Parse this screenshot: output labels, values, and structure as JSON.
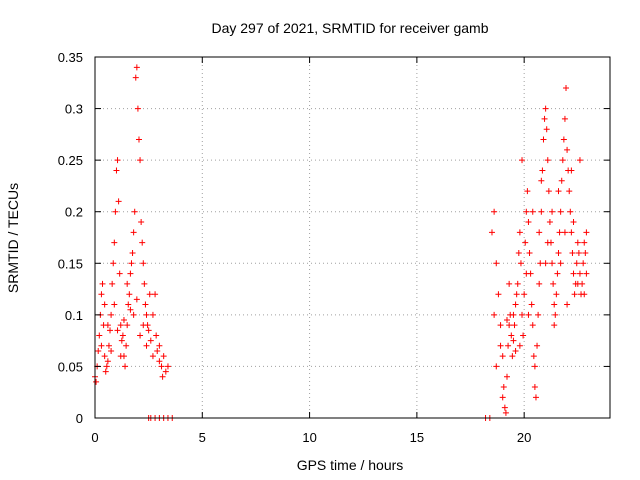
{
  "chart_data": {
    "type": "scatter",
    "title": "Day 297 of 2021, SRMTID for receiver gamb",
    "xlabel": "GPS time / hours",
    "ylabel": "SRMTID / TECUs",
    "xlim": [
      0,
      24
    ],
    "ylim": [
      0,
      0.35
    ],
    "xticks": [
      0,
      5,
      10,
      15,
      20
    ],
    "xtick_labels": [
      "0",
      "5",
      "10",
      "15",
      "20"
    ],
    "yticks": [
      0,
      0.05,
      0.1,
      0.15,
      0.2,
      0.25,
      0.3,
      0.35
    ],
    "ytick_labels": [
      "0",
      "0.05",
      "0.1",
      "0.15",
      "0.2",
      "0.25",
      "0.3",
      "0.35"
    ],
    "grid": true,
    "marker": "plus",
    "series": [
      {
        "name": "SRMTID",
        "color": "#ff0000",
        "points": [
          [
            0.0,
            0.04
          ],
          [
            0.05,
            0.035
          ],
          [
            0.1,
            0.05
          ],
          [
            0.15,
            0.065
          ],
          [
            0.2,
            0.08
          ],
          [
            0.25,
            0.1
          ],
          [
            0.3,
            0.12
          ],
          [
            0.35,
            0.13
          ],
          [
            0.4,
            0.09
          ],
          [
            0.45,
            0.06
          ],
          [
            0.5,
            0.045
          ],
          [
            0.55,
            0.05
          ],
          [
            0.6,
            0.055
          ],
          [
            0.65,
            0.07
          ],
          [
            0.7,
            0.085
          ],
          [
            0.75,
            0.1
          ],
          [
            0.8,
            0.13
          ],
          [
            0.85,
            0.15
          ],
          [
            0.9,
            0.17
          ],
          [
            0.95,
            0.2
          ],
          [
            1.0,
            0.24
          ],
          [
            1.05,
            0.25
          ],
          [
            1.1,
            0.21
          ],
          [
            1.15,
            0.14
          ],
          [
            1.2,
            0.09
          ],
          [
            1.25,
            0.075
          ],
          [
            1.3,
            0.08
          ],
          [
            1.35,
            0.06
          ],
          [
            1.4,
            0.05
          ],
          [
            1.45,
            0.07
          ],
          [
            1.5,
            0.09
          ],
          [
            1.55,
            0.11
          ],
          [
            1.6,
            0.12
          ],
          [
            1.65,
            0.14
          ],
          [
            1.7,
            0.15
          ],
          [
            1.75,
            0.16
          ],
          [
            1.8,
            0.18
          ],
          [
            1.85,
            0.2
          ],
          [
            1.9,
            0.33
          ],
          [
            1.95,
            0.34
          ],
          [
            2.0,
            0.3
          ],
          [
            2.05,
            0.27
          ],
          [
            2.1,
            0.25
          ],
          [
            2.15,
            0.19
          ],
          [
            2.2,
            0.17
          ],
          [
            2.25,
            0.15
          ],
          [
            2.3,
            0.13
          ],
          [
            2.35,
            0.11
          ],
          [
            2.4,
            0.1
          ],
          [
            2.45,
            0.09
          ],
          [
            2.5,
            0.085
          ],
          [
            2.6,
            0.075
          ],
          [
            2.7,
            0.1
          ],
          [
            2.8,
            0.12
          ],
          [
            2.9,
            0.065
          ],
          [
            3.0,
            0.055
          ],
          [
            3.1,
            0.05
          ],
          [
            3.2,
            0.06
          ],
          [
            3.3,
            0.045
          ],
          [
            3.4,
            0.05
          ],
          [
            0.3,
            0.07
          ],
          [
            0.6,
            0.09
          ],
          [
            0.9,
            0.11
          ],
          [
            1.2,
            0.06
          ],
          [
            1.5,
            0.13
          ],
          [
            1.8,
            0.1
          ],
          [
            2.1,
            0.08
          ],
          [
            2.4,
            0.07
          ],
          [
            2.7,
            0.06
          ],
          [
            3.0,
            0.07
          ],
          [
            0.45,
            0.11
          ],
          [
            0.75,
            0.065
          ],
          [
            1.05,
            0.085
          ],
          [
            1.35,
            0.095
          ],
          [
            1.65,
            0.105
          ],
          [
            1.95,
            0.115
          ],
          [
            2.25,
            0.09
          ],
          [
            2.55,
            0.12
          ],
          [
            2.85,
            0.08
          ],
          [
            3.15,
            0.04
          ],
          [
            2.5,
            0.0
          ],
          [
            2.6,
            0.0
          ],
          [
            2.8,
            0.0
          ],
          [
            3.0,
            0.0
          ],
          [
            3.2,
            0.0
          ],
          [
            3.4,
            0.0
          ],
          [
            3.6,
            0.0
          ],
          [
            18.2,
            0.0
          ],
          [
            18.4,
            0.0
          ],
          [
            18.5,
            0.18
          ],
          [
            18.6,
            0.2
          ],
          [
            18.7,
            0.15
          ],
          [
            18.8,
            0.12
          ],
          [
            18.9,
            0.09
          ],
          [
            19.0,
            0.06
          ],
          [
            19.05,
            0.03
          ],
          [
            19.1,
            0.01
          ],
          [
            19.15,
            0.005
          ],
          [
            19.2,
            0.04
          ],
          [
            19.25,
            0.07
          ],
          [
            19.3,
            0.09
          ],
          [
            19.35,
            0.1
          ],
          [
            19.4,
            0.08
          ],
          [
            19.45,
            0.06
          ],
          [
            19.5,
            0.075
          ],
          [
            19.55,
            0.09
          ],
          [
            19.6,
            0.11
          ],
          [
            19.65,
            0.12
          ],
          [
            19.7,
            0.13
          ],
          [
            19.75,
            0.16
          ],
          [
            19.8,
            0.18
          ],
          [
            19.85,
            0.15
          ],
          [
            19.9,
            0.1
          ],
          [
            19.95,
            0.08
          ],
          [
            20.0,
            0.12
          ],
          [
            20.05,
            0.17
          ],
          [
            20.1,
            0.2
          ],
          [
            20.15,
            0.22
          ],
          [
            20.2,
            0.19
          ],
          [
            20.25,
            0.16
          ],
          [
            20.3,
            0.14
          ],
          [
            20.35,
            0.11
          ],
          [
            20.4,
            0.09
          ],
          [
            20.45,
            0.06
          ],
          [
            20.5,
            0.03
          ],
          [
            20.55,
            0.02
          ],
          [
            20.6,
            0.07
          ],
          [
            20.65,
            0.1
          ],
          [
            20.7,
            0.13
          ],
          [
            20.75,
            0.15
          ],
          [
            20.8,
            0.2
          ],
          [
            20.85,
            0.24
          ],
          [
            20.9,
            0.27
          ],
          [
            20.95,
            0.29
          ],
          [
            21.0,
            0.3
          ],
          [
            21.05,
            0.28
          ],
          [
            21.1,
            0.25
          ],
          [
            21.15,
            0.22
          ],
          [
            21.2,
            0.19
          ],
          [
            21.25,
            0.17
          ],
          [
            21.3,
            0.15
          ],
          [
            21.35,
            0.13
          ],
          [
            21.4,
            0.11
          ],
          [
            21.45,
            0.1
          ],
          [
            21.5,
            0.12
          ],
          [
            21.55,
            0.14
          ],
          [
            21.6,
            0.16
          ],
          [
            21.65,
            0.18
          ],
          [
            21.7,
            0.2
          ],
          [
            21.75,
            0.23
          ],
          [
            21.8,
            0.25
          ],
          [
            21.85,
            0.27
          ],
          [
            21.9,
            0.29
          ],
          [
            21.95,
            0.32
          ],
          [
            22.0,
            0.26
          ],
          [
            22.05,
            0.24
          ],
          [
            22.1,
            0.22
          ],
          [
            22.15,
            0.2
          ],
          [
            22.2,
            0.18
          ],
          [
            22.25,
            0.16
          ],
          [
            22.3,
            0.14
          ],
          [
            22.35,
            0.12
          ],
          [
            22.4,
            0.13
          ],
          [
            22.45,
            0.15
          ],
          [
            22.5,
            0.17
          ],
          [
            22.55,
            0.16
          ],
          [
            22.6,
            0.14
          ],
          [
            22.65,
            0.12
          ],
          [
            22.7,
            0.13
          ],
          [
            22.75,
            0.15
          ],
          [
            22.8,
            0.17
          ],
          [
            22.85,
            0.16
          ],
          [
            22.9,
            0.14
          ],
          [
            18.6,
            0.1
          ],
          [
            18.9,
            0.07
          ],
          [
            19.2,
            0.095
          ],
          [
            19.5,
            0.1
          ],
          [
            19.8,
            0.07
          ],
          [
            20.1,
            0.14
          ],
          [
            20.4,
            0.2
          ],
          [
            20.7,
            0.18
          ],
          [
            21.0,
            0.15
          ],
          [
            21.3,
            0.2
          ],
          [
            21.6,
            0.22
          ],
          [
            21.9,
            0.18
          ],
          [
            22.2,
            0.24
          ],
          [
            22.5,
            0.13
          ],
          [
            22.8,
            0.12
          ],
          [
            18.7,
            0.05
          ],
          [
            19.0,
            0.02
          ],
          [
            19.3,
            0.13
          ],
          [
            19.6,
            0.065
          ],
          [
            19.9,
            0.25
          ],
          [
            20.2,
            0.1
          ],
          [
            20.5,
            0.05
          ],
          [
            20.8,
            0.23
          ],
          [
            21.1,
            0.17
          ],
          [
            21.4,
            0.09
          ],
          [
            21.7,
            0.15
          ],
          [
            22.0,
            0.11
          ],
          [
            22.3,
            0.19
          ],
          [
            22.6,
            0.25
          ],
          [
            22.9,
            0.18
          ]
        ]
      }
    ]
  }
}
